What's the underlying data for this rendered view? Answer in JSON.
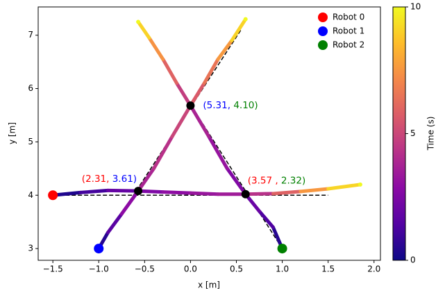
{
  "chart_data": {
    "type": "trajectory",
    "xlabel": "x [m]",
    "ylabel": "y [m]",
    "xlim": [
      -1.66,
      2.07
    ],
    "ylim": [
      2.78,
      7.53
    ],
    "xticks": [
      {
        "value": -1.5,
        "label": "−1.5"
      },
      {
        "value": -1,
        "label": "−1.0"
      },
      {
        "value": -0.5,
        "label": "−0.5"
      },
      {
        "value": 0,
        "label": "0.0"
      },
      {
        "value": 0.5,
        "label": "0.5"
      },
      {
        "value": 1,
        "label": "1.0"
      },
      {
        "value": 1.5,
        "label": "1.5"
      },
      {
        "value": 2,
        "label": "2.0"
      }
    ],
    "yticks": [
      3,
      4,
      5,
      6,
      7
    ],
    "legend": "upper right",
    "colormap": [
      "#0d0887",
      "#5302a3",
      "#8b0aa5",
      "#b83289",
      "#db5c68",
      "#f48849",
      "#febd2a",
      "#f0f921"
    ],
    "colorbar": {
      "label": "Time (s)",
      "lim": [
        0,
        10
      ],
      "ticks": [
        0,
        5,
        10
      ]
    },
    "series": [
      {
        "name": "Robot 0",
        "color": "#ff0000",
        "x": [
          -1.5,
          -1.2,
          -0.9,
          -0.57,
          -0.3,
          0,
          0.3,
          0.6,
          0.9,
          1.2,
          1.5,
          1.85
        ],
        "values": [
          4.0,
          4.05,
          4.09,
          4.08,
          4.06,
          4.04,
          4.02,
          4.02,
          4.03,
          4.07,
          4.12,
          4.2
        ],
        "time": [
          0,
          0.75,
          1.5,
          2.31,
          2.75,
          3.15,
          3.4,
          3.57,
          5,
          6.8,
          8.3,
          10
        ],
        "ref_x": [
          -1.5,
          1.5
        ],
        "ref_y": [
          4,
          4
        ]
      },
      {
        "name": "Robot 1",
        "color": "#0000ff",
        "x": [
          -1,
          -0.9,
          -0.75,
          -0.57,
          -0.4,
          -0.2,
          0,
          0.15,
          0.3,
          0.45,
          0.6
        ],
        "values": [
          3.0,
          3.3,
          3.65,
          4.08,
          4.5,
          5.1,
          5.68,
          6.1,
          6.55,
          6.9,
          7.3
        ],
        "time": [
          0,
          1,
          2.2,
          3.61,
          4.0,
          4.6,
          5.31,
          6,
          7,
          8.2,
          10
        ],
        "ref_x": [
          -1,
          0.55
        ],
        "ref_y": [
          3,
          7.1
        ]
      },
      {
        "name": "Robot 2",
        "color": "#008000",
        "x": [
          1,
          0.9,
          0.75,
          0.6,
          0.4,
          0.2,
          0,
          -0.15,
          -0.3,
          -0.45,
          -0.57
        ],
        "values": [
          3.0,
          3.4,
          3.7,
          4.02,
          4.5,
          5.1,
          5.68,
          6.1,
          6.55,
          6.95,
          7.25
        ],
        "time": [
          0,
          1,
          1.7,
          2.32,
          2.9,
          3.5,
          4.1,
          5.3,
          6.6,
          8.2,
          10
        ],
        "ref_x": [
          1,
          -0.5
        ],
        "ref_y": [
          3,
          7.05
        ]
      }
    ],
    "crossings": {
      "x": [
        -0.57,
        0,
        0.6
      ],
      "y": [
        4.08,
        5.68,
        4.02
      ]
    },
    "annotations": [
      {
        "parts": [
          {
            "text": "(",
            "color": "#ff0000"
          },
          {
            "text": "2.31",
            "color": "#ff0000"
          },
          {
            "text": ", ",
            "color": "#ff0000"
          },
          {
            "text": "3.61",
            "color": "#0000ff"
          },
          {
            "text": ")",
            "color": "#0000ff"
          }
        ]
      },
      {
        "parts": [
          {
            "text": "(",
            "color": "#0000ff"
          },
          {
            "text": "5.31",
            "color": "#0000ff"
          },
          {
            "text": ", ",
            "color": "#0000ff"
          },
          {
            "text": "4.10",
            "color": "#008000"
          },
          {
            "text": ")",
            "color": "#008000"
          }
        ]
      },
      {
        "parts": [
          {
            "text": "(",
            "color": "#ff0000"
          },
          {
            "text": "3.57",
            "color": "#ff0000"
          },
          {
            "text": " , ",
            "color": "#ff0000"
          },
          {
            "text": "2.32",
            "color": "#008000"
          },
          {
            "text": ")",
            "color": "#008000"
          }
        ]
      }
    ]
  }
}
